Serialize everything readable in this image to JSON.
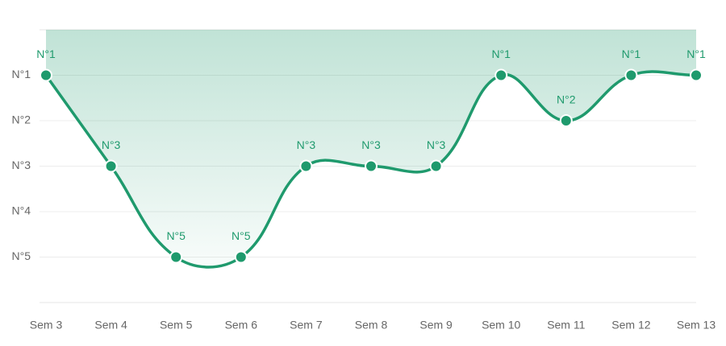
{
  "chart_data": {
    "type": "line",
    "categories": [
      "Sem 3",
      "Sem 4",
      "Sem 5",
      "Sem 6",
      "Sem 7",
      "Sem 8",
      "Sem 9",
      "Sem 10",
      "Sem 11",
      "Sem 12",
      "Sem 13"
    ],
    "values": [
      1,
      3,
      5,
      5,
      3,
      3,
      3,
      1,
      2,
      1,
      1
    ],
    "value_labels": [
      "N°1",
      "N°3",
      "N°5",
      "N°5",
      "N°3",
      "N°3",
      "N°3",
      "N°1",
      "N°2",
      "N°1",
      "N°1"
    ],
    "color": "#1f9a6d",
    "ylim": [
      0,
      6
    ],
    "inverted": true,
    "yticks": [
      {
        "value": 1,
        "label": "N°1"
      },
      {
        "value": 2,
        "label": "N°2"
      },
      {
        "value": 3,
        "label": "N°3"
      },
      {
        "value": 4,
        "label": "N°4"
      },
      {
        "value": 5,
        "label": "N°5"
      }
    ],
    "grid": true,
    "fill": true
  }
}
